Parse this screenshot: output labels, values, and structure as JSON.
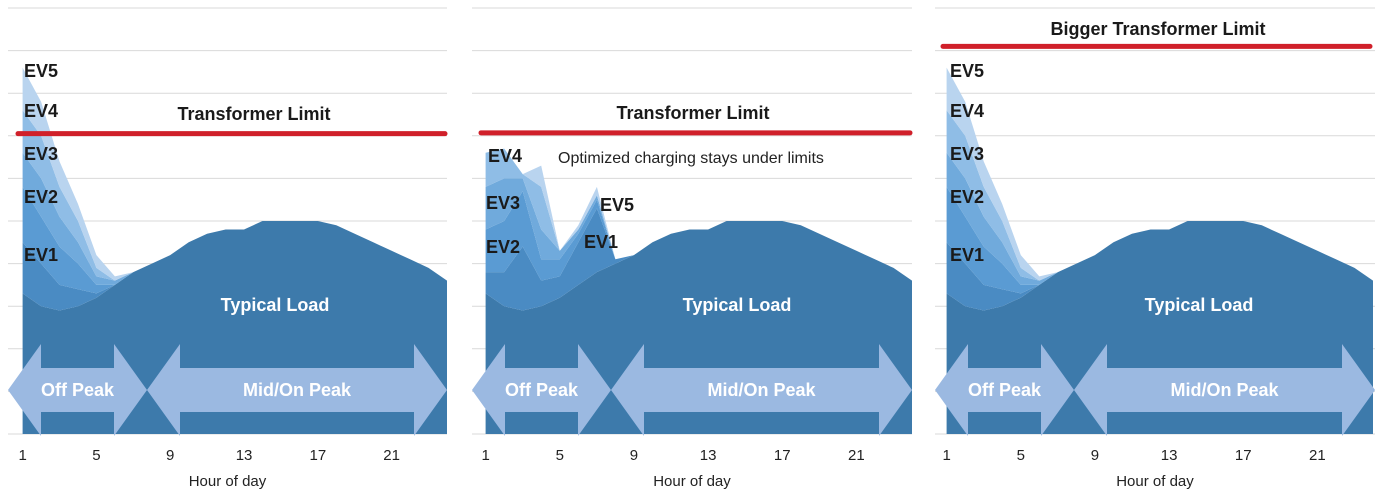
{
  "chart_data": [
    {
      "type": "area",
      "x": [
        1,
        2,
        3,
        4,
        5,
        6,
        7,
        8,
        9,
        10,
        11,
        12,
        13,
        14,
        15,
        16,
        17,
        18,
        19,
        20,
        21,
        22,
        23,
        24
      ],
      "xlim": [
        0.75,
        24
      ],
      "xticks": [
        1,
        5,
        9,
        13,
        17,
        21
      ],
      "xlabel": "Hour of day",
      "ylim": [
        0,
        10
      ],
      "yticks": [
        0,
        1,
        2,
        3,
        4,
        5,
        6,
        7,
        8,
        9,
        10
      ],
      "grid": true,
      "limit": 7.05,
      "limit_label": "Transformer Limit",
      "limit_color": "#d0202a",
      "periods": [
        "Off Peak",
        "Mid/On Peak"
      ],
      "series": [
        {
          "name": "Typical Load",
          "color": "#3d7aab",
          "values": [
            3.3,
            3.0,
            2.9,
            3.0,
            3.2,
            3.5,
            3.8,
            4.0,
            4.2,
            4.5,
            4.7,
            4.8,
            4.8,
            5.0,
            5.0,
            5.0,
            5.0,
            4.9,
            4.7,
            4.5,
            4.3,
            4.1,
            3.9,
            3.6
          ]
        },
        {
          "name": "EV1",
          "color": "#4a8bc3",
          "values": [
            1.2,
            1.0,
            0.6,
            0.4,
            0.1,
            0,
            0,
            0,
            0,
            0,
            0,
            0,
            0,
            0,
            0,
            0,
            0,
            0,
            0,
            0,
            0,
            0,
            0,
            0
          ]
        },
        {
          "name": "EV2",
          "color": "#5a9bd3",
          "values": [
            1.3,
            1.1,
            0.9,
            0.6,
            0.2,
            0,
            0,
            0,
            0,
            0,
            0,
            0,
            0,
            0,
            0,
            0,
            0,
            0,
            0,
            0,
            0,
            0,
            0,
            0
          ]
        },
        {
          "name": "EV3",
          "color": "#70aadc",
          "values": [
            0.8,
            0.9,
            0.7,
            0.5,
            0.2,
            0.1,
            0,
            0,
            0,
            0,
            0,
            0,
            0,
            0,
            0,
            0,
            0,
            0,
            0,
            0,
            0,
            0,
            0,
            0
          ]
        },
        {
          "name": "EV4",
          "color": "#8fbde6",
          "values": [
            1.0,
            1.0,
            0.7,
            0.5,
            0.2,
            0,
            0,
            0,
            0,
            0,
            0,
            0,
            0,
            0,
            0,
            0,
            0,
            0,
            0,
            0,
            0,
            0,
            0,
            0
          ]
        },
        {
          "name": "EV5",
          "color": "#b9d4ef",
          "values": [
            1.0,
            0.8,
            0.6,
            0.4,
            0.3,
            0.1,
            0,
            0,
            0,
            0,
            0,
            0,
            0,
            0,
            0,
            0,
            0,
            0,
            0,
            0,
            0,
            0,
            0,
            0
          ]
        }
      ]
    },
    {
      "type": "area",
      "x": [
        1,
        2,
        3,
        4,
        5,
        6,
        7,
        8,
        9,
        10,
        11,
        12,
        13,
        14,
        15,
        16,
        17,
        18,
        19,
        20,
        21,
        22,
        23,
        24
      ],
      "xlim": [
        0.75,
        24
      ],
      "xticks": [
        1,
        5,
        9,
        13,
        17,
        21
      ],
      "xlabel": "Hour of day",
      "ylim": [
        0,
        10
      ],
      "yticks": [
        0,
        1,
        2,
        3,
        4,
        5,
        6,
        7,
        8,
        9,
        10
      ],
      "grid": true,
      "limit": 7.07,
      "limit_label": "Transformer Limit",
      "limit_color": "#d0202a",
      "annotation": "Optimized charging stays under limits",
      "periods": [
        "Off Peak",
        "Mid/On Peak"
      ],
      "series": [
        {
          "name": "Typical Load",
          "color": "#3d7aab",
          "values": [
            3.3,
            3.0,
            2.9,
            3.0,
            3.2,
            3.5,
            3.8,
            4.0,
            4.2,
            4.5,
            4.7,
            4.8,
            4.8,
            5.0,
            5.0,
            5.0,
            5.0,
            4.9,
            4.7,
            4.5,
            4.3,
            4.1,
            3.9,
            3.6
          ]
        },
        {
          "name": "EV1",
          "color": "#4a8bc3",
          "values": [
            0.5,
            0.8,
            1.5,
            0.6,
            0.5,
            1.0,
            1.5,
            0.1,
            0,
            0,
            0,
            0,
            0,
            0,
            0,
            0,
            0,
            0,
            0,
            0,
            0,
            0,
            0,
            0
          ]
        },
        {
          "name": "EV2",
          "color": "#5a9bd3",
          "values": [
            1.0,
            1.2,
            1.3,
            0.5,
            0.4,
            0.2,
            0.2,
            0,
            0,
            0,
            0,
            0,
            0,
            0,
            0,
            0,
            0,
            0,
            0,
            0,
            0,
            0,
            0,
            0
          ]
        },
        {
          "name": "EV3",
          "color": "#70aadc",
          "values": [
            1.0,
            1.0,
            0.3,
            0.7,
            0.2,
            0.1,
            0.1,
            0,
            0,
            0,
            0,
            0,
            0,
            0,
            0,
            0,
            0,
            0,
            0,
            0,
            0,
            0,
            0,
            0
          ]
        },
        {
          "name": "EV4",
          "color": "#8fbde6",
          "values": [
            0.8,
            0.7,
            0.1,
            1.0,
            0,
            0,
            0,
            0,
            0,
            0,
            0,
            0,
            0,
            0,
            0,
            0,
            0,
            0,
            0,
            0,
            0,
            0,
            0,
            0
          ]
        },
        {
          "name": "EV5",
          "color": "#b9d4ef",
          "values": [
            0,
            0,
            0,
            0.5,
            0,
            0.1,
            0.2,
            0,
            0,
            0,
            0,
            0,
            0,
            0,
            0,
            0,
            0,
            0,
            0,
            0,
            0,
            0,
            0,
            0
          ]
        }
      ]
    },
    {
      "type": "area",
      "x": [
        1,
        2,
        3,
        4,
        5,
        6,
        7,
        8,
        9,
        10,
        11,
        12,
        13,
        14,
        15,
        16,
        17,
        18,
        19,
        20,
        21,
        22,
        23,
        24
      ],
      "xlim": [
        0.75,
        24
      ],
      "xticks": [
        1,
        5,
        9,
        13,
        17,
        21
      ],
      "xlabel": "Hour of day",
      "ylim": [
        0,
        10
      ],
      "yticks": [
        0,
        1,
        2,
        3,
        4,
        5,
        6,
        7,
        8,
        9,
        10
      ],
      "grid": true,
      "limit": 9.1,
      "limit_label": "Bigger Transformer Limit",
      "limit_color": "#d0202a",
      "periods": [
        "Off Peak",
        "Mid/On Peak"
      ],
      "series": [
        {
          "name": "Typical Load",
          "color": "#3d7aab",
          "values": [
            3.3,
            3.0,
            2.9,
            3.0,
            3.2,
            3.5,
            3.8,
            4.0,
            4.2,
            4.5,
            4.7,
            4.8,
            4.8,
            5.0,
            5.0,
            5.0,
            5.0,
            4.9,
            4.7,
            4.5,
            4.3,
            4.1,
            3.9,
            3.6
          ]
        },
        {
          "name": "EV1",
          "color": "#4a8bc3",
          "values": [
            1.2,
            1.0,
            0.6,
            0.4,
            0.1,
            0,
            0,
            0,
            0,
            0,
            0,
            0,
            0,
            0,
            0,
            0,
            0,
            0,
            0,
            0,
            0,
            0,
            0,
            0
          ]
        },
        {
          "name": "EV2",
          "color": "#5a9bd3",
          "values": [
            1.3,
            1.1,
            0.9,
            0.6,
            0.2,
            0,
            0,
            0,
            0,
            0,
            0,
            0,
            0,
            0,
            0,
            0,
            0,
            0,
            0,
            0,
            0,
            0,
            0,
            0
          ]
        },
        {
          "name": "EV3",
          "color": "#70aadc",
          "values": [
            0.8,
            0.9,
            0.7,
            0.5,
            0.2,
            0.1,
            0,
            0,
            0,
            0,
            0,
            0,
            0,
            0,
            0,
            0,
            0,
            0,
            0,
            0,
            0,
            0,
            0,
            0
          ]
        },
        {
          "name": "EV4",
          "color": "#8fbde6",
          "values": [
            1.0,
            1.0,
            0.7,
            0.5,
            0.2,
            0,
            0,
            0,
            0,
            0,
            0,
            0,
            0,
            0,
            0,
            0,
            0,
            0,
            0,
            0,
            0,
            0,
            0,
            0
          ]
        },
        {
          "name": "EV5",
          "color": "#b9d4ef",
          "values": [
            1.0,
            0.8,
            0.6,
            0.4,
            0.3,
            0.1,
            0,
            0,
            0,
            0,
            0,
            0,
            0,
            0,
            0,
            0,
            0,
            0,
            0,
            0,
            0,
            0,
            0,
            0
          ]
        }
      ]
    }
  ]
}
